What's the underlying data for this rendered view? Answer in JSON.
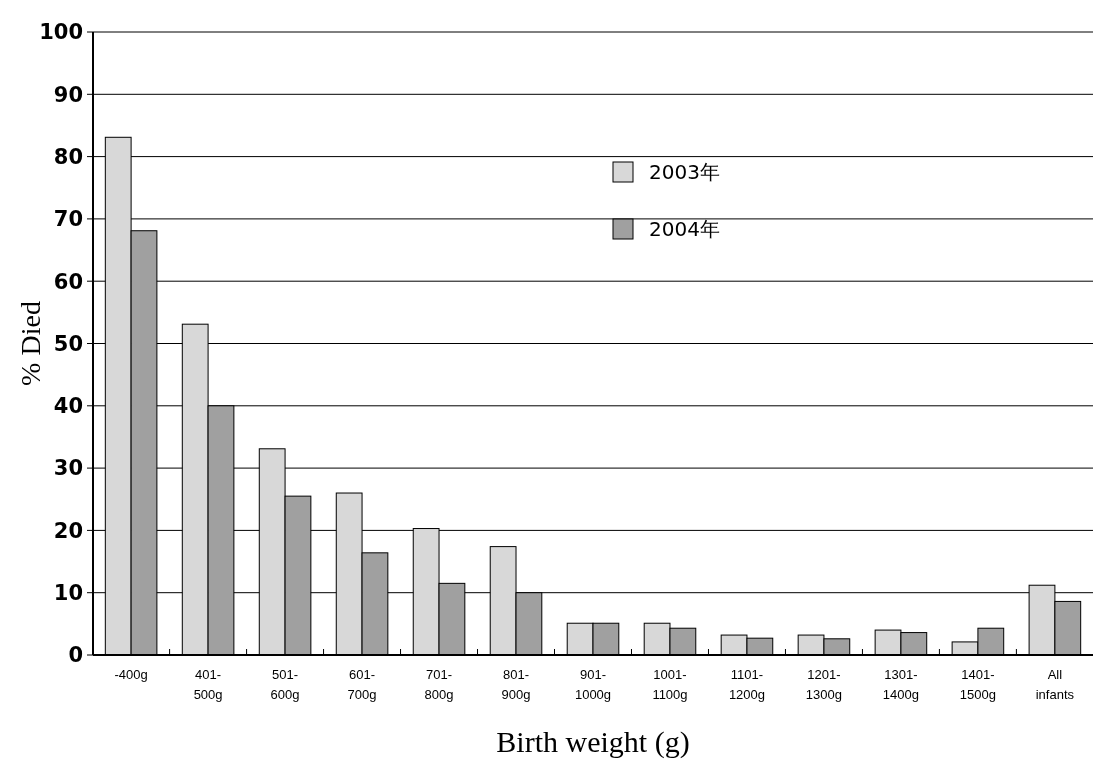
{
  "chart_data": {
    "type": "bar",
    "xlabel": "Birth weight (g)",
    "ylabel": "% Died",
    "categories": [
      "-400g",
      "401-500g",
      "501-600g",
      "601-700g",
      "701-800g",
      "801-900g",
      "901-1000g",
      "1001-1100g",
      "1101-1200g",
      "1201-1300g",
      "1301-1400g",
      "1401-1500g",
      "All infants"
    ],
    "series": [
      {
        "name": "2003年",
        "color": "#d8d8d8",
        "values": [
          83.1,
          53.1,
          33.1,
          26,
          20.3,
          17.4,
          5.1,
          5.1,
          3.2,
          3.2,
          4,
          2.1,
          11.2
        ]
      },
      {
        "name": "2004年",
        "color": "#a0a0a0",
        "values": [
          68.1,
          40,
          25.5,
          16.4,
          11.5,
          10,
          5.1,
          4.3,
          2.7,
          2.6,
          3.6,
          4.3,
          8.6
        ]
      }
    ],
    "ylim": [
      0,
      100
    ],
    "yticks": [
      0,
      10,
      20,
      30,
      40,
      50,
      60,
      70,
      80,
      90,
      100
    ],
    "grid": "y",
    "legend": "top right"
  }
}
